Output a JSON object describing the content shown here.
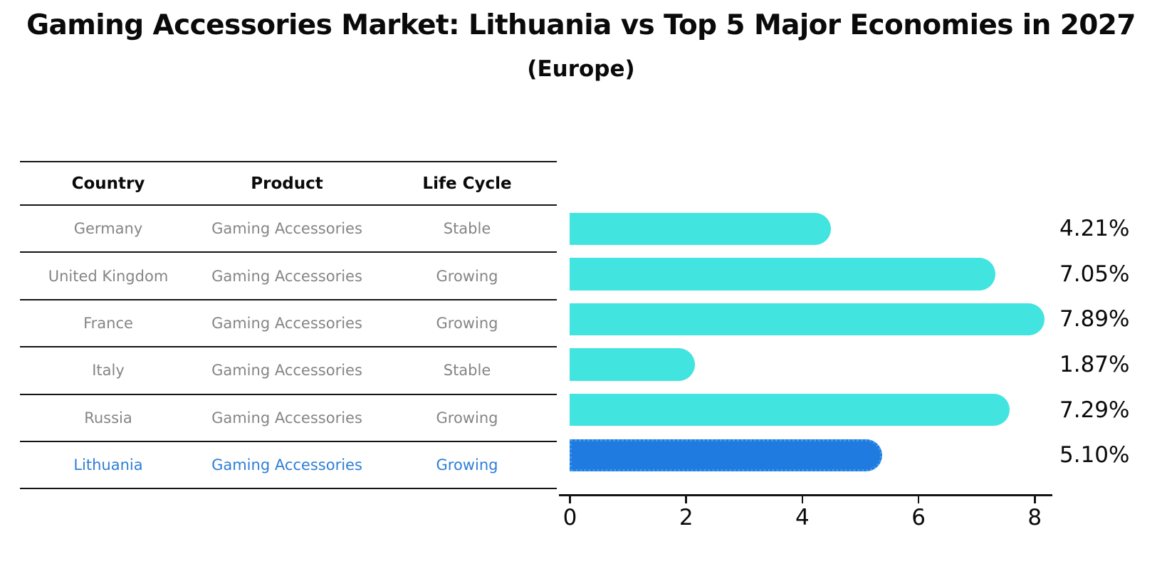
{
  "title": "Gaming Accessories Market: Lithuania vs Top 5 Major Economies in 2027",
  "subtitle": "(Europe)",
  "table": {
    "headers": [
      "Country",
      "Product",
      "Life Cycle"
    ],
    "rows": [
      {
        "country": "Germany",
        "product": "Gaming Accessories",
        "life_cycle": "Stable"
      },
      {
        "country": "United Kingdom",
        "product": "Gaming Accessories",
        "life_cycle": "Growing"
      },
      {
        "country": "France",
        "product": "Gaming Accessories",
        "life_cycle": "Growing"
      },
      {
        "country": "Italy",
        "product": "Gaming Accessories",
        "life_cycle": "Stable"
      },
      {
        "country": "Russia",
        "product": "Gaming Accessories",
        "life_cycle": "Growing"
      },
      {
        "country": "Lithuania",
        "product": "Gaming Accessories",
        "life_cycle": "Growing"
      }
    ]
  },
  "chart_data": {
    "type": "bar",
    "orientation": "horizontal",
    "categories": [
      "Germany",
      "United Kingdom",
      "France",
      "Italy",
      "Russia",
      "Lithuania"
    ],
    "values": [
      4.21,
      7.05,
      7.89,
      1.87,
      7.29,
      5.1
    ],
    "labels": [
      "4.21%",
      "7.05%",
      "7.89%",
      "1.87%",
      "7.29%",
      "5.10%"
    ],
    "xticks": [
      "0",
      "2",
      "4",
      "6",
      "8"
    ],
    "xlim": [
      0,
      8.3
    ],
    "grid": "off",
    "legend": "none",
    "highlight_index": 5,
    "bar_color": "#42E4DF",
    "highlight_color": "#1F7BE0",
    "highlight_border_color": "#3F97E8",
    "highlight_text_color": "#2E7ED6"
  }
}
